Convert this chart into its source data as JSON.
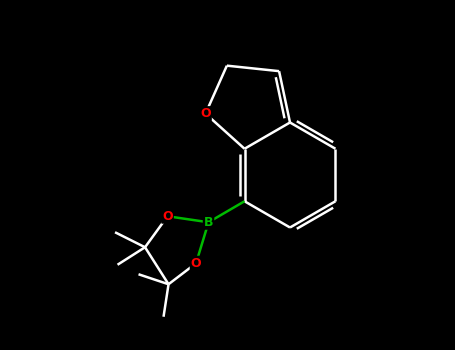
{
  "background_color": "#000000",
  "bond_color_white": "#ffffff",
  "bond_color_B": "#00bb00",
  "atom_color_O": "#ff0000",
  "atom_color_B": "#00bb00",
  "atom_color_C": "#888888",
  "figsize": [
    4.55,
    3.5
  ],
  "dpi": 100,
  "xlim": [
    0,
    9.1
  ],
  "ylim": [
    0,
    7.0
  ],
  "lw": 1.8,
  "fontsize": 9
}
